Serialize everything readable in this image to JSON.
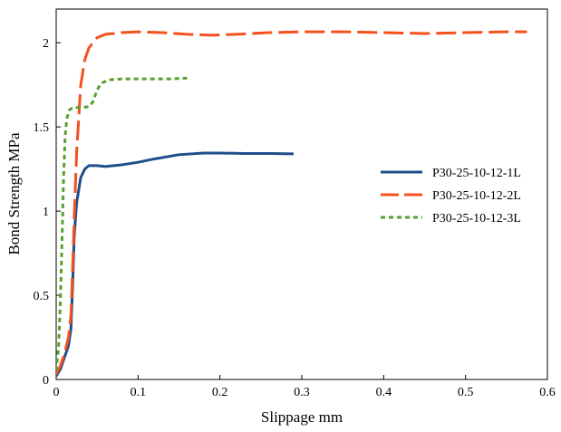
{
  "chart_data": {
    "type": "line",
    "xlabel": "Slippage mm",
    "ylabel": "Bond Strength MPa",
    "xlim": [
      0,
      0.6
    ],
    "ylim": [
      0,
      2.2
    ],
    "x_ticks": [
      0,
      0.1,
      0.2,
      0.3,
      0.4,
      0.5,
      0.6
    ],
    "x_tick_labels": [
      "0",
      "0.1",
      "0.2",
      "0.3",
      "0.4",
      "0.5",
      "0.6"
    ],
    "y_ticks": [
      0,
      0.5,
      1,
      1.5,
      2
    ],
    "y_tick_labels": [
      "0",
      "0.5",
      "1",
      "1.5",
      "2"
    ],
    "grid": false,
    "legend_position": "center-right",
    "series": [
      {
        "name": "P30-25-10-12-1L",
        "color": "#1f4e8c",
        "style": "solid",
        "points": [
          [
            0,
            0.02
          ],
          [
            0.005,
            0.06
          ],
          [
            0.01,
            0.13
          ],
          [
            0.015,
            0.2
          ],
          [
            0.018,
            0.3
          ],
          [
            0.02,
            0.55
          ],
          [
            0.022,
            0.85
          ],
          [
            0.025,
            1.05
          ],
          [
            0.03,
            1.2
          ],
          [
            0.035,
            1.25
          ],
          [
            0.04,
            1.27
          ],
          [
            0.05,
            1.27
          ],
          [
            0.06,
            1.265
          ],
          [
            0.07,
            1.27
          ],
          [
            0.08,
            1.275
          ],
          [
            0.1,
            1.29
          ],
          [
            0.12,
            1.31
          ],
          [
            0.15,
            1.335
          ],
          [
            0.18,
            1.345
          ],
          [
            0.2,
            1.345
          ],
          [
            0.23,
            1.342
          ],
          [
            0.26,
            1.342
          ],
          [
            0.29,
            1.34
          ]
        ]
      },
      {
        "name": "P30-25-10-12-2L",
        "color": "#f4511e",
        "style": "dashed",
        "points": [
          [
            0,
            0.03
          ],
          [
            0.005,
            0.08
          ],
          [
            0.01,
            0.15
          ],
          [
            0.015,
            0.25
          ],
          [
            0.018,
            0.38
          ],
          [
            0.02,
            0.65
          ],
          [
            0.022,
            0.95
          ],
          [
            0.025,
            1.35
          ],
          [
            0.03,
            1.75
          ],
          [
            0.035,
            1.9
          ],
          [
            0.04,
            1.97
          ],
          [
            0.05,
            2.03
          ],
          [
            0.06,
            2.05
          ],
          [
            0.08,
            2.06
          ],
          [
            0.1,
            2.065
          ],
          [
            0.13,
            2.06
          ],
          [
            0.16,
            2.05
          ],
          [
            0.19,
            2.045
          ],
          [
            0.22,
            2.05
          ],
          [
            0.26,
            2.06
          ],
          [
            0.3,
            2.065
          ],
          [
            0.35,
            2.065
          ],
          [
            0.4,
            2.06
          ],
          [
            0.45,
            2.055
          ],
          [
            0.5,
            2.06
          ],
          [
            0.55,
            2.065
          ],
          [
            0.575,
            2.065
          ]
        ]
      },
      {
        "name": "P30-25-10-12-3L",
        "color": "#5a9e2f",
        "style": "dotted",
        "points": [
          [
            0,
            0.05
          ],
          [
            0.003,
            0.2
          ],
          [
            0.005,
            0.45
          ],
          [
            0.007,
            0.8
          ],
          [
            0.009,
            1.2
          ],
          [
            0.011,
            1.45
          ],
          [
            0.013,
            1.55
          ],
          [
            0.016,
            1.6
          ],
          [
            0.02,
            1.615
          ],
          [
            0.03,
            1.615
          ],
          [
            0.04,
            1.62
          ],
          [
            0.045,
            1.65
          ],
          [
            0.05,
            1.72
          ],
          [
            0.055,
            1.76
          ],
          [
            0.065,
            1.78
          ],
          [
            0.08,
            1.785
          ],
          [
            0.1,
            1.785
          ],
          [
            0.12,
            1.785
          ],
          [
            0.14,
            1.785
          ],
          [
            0.16,
            1.79
          ]
        ]
      }
    ]
  }
}
